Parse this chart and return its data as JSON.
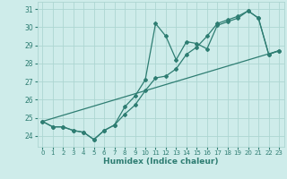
{
  "xlabel": "Humidex (Indice chaleur)",
  "bg_color": "#ceecea",
  "line_color": "#2e7d72",
  "grid_color": "#add6d2",
  "xlim": [
    -0.5,
    23.5
  ],
  "ylim": [
    23.4,
    31.4
  ],
  "yticks": [
    24,
    25,
    26,
    27,
    28,
    29,
    30,
    31
  ],
  "xticks": [
    0,
    1,
    2,
    3,
    4,
    5,
    6,
    7,
    8,
    9,
    10,
    11,
    12,
    13,
    14,
    15,
    16,
    17,
    18,
    19,
    20,
    21,
    22,
    23
  ],
  "line1_x": [
    0,
    1,
    2,
    3,
    4,
    5,
    6,
    7,
    8,
    9,
    10,
    11,
    12,
    13,
    14,
    15,
    16,
    17,
    18,
    19,
    20,
    21,
    22,
    23
  ],
  "line1_y": [
    24.8,
    24.5,
    24.5,
    24.3,
    24.2,
    23.8,
    24.3,
    24.6,
    25.6,
    26.2,
    27.1,
    30.2,
    29.5,
    28.2,
    29.2,
    29.1,
    28.8,
    30.1,
    30.3,
    30.5,
    30.9,
    30.5,
    28.5,
    28.7
  ],
  "line2_x": [
    0,
    1,
    2,
    3,
    4,
    5,
    6,
    7,
    8,
    9,
    10,
    11,
    12,
    13,
    14,
    15,
    16,
    17,
    18,
    19,
    20,
    21,
    22,
    23
  ],
  "line2_y": [
    24.8,
    24.5,
    24.5,
    24.3,
    24.2,
    23.8,
    24.3,
    24.6,
    25.2,
    25.7,
    26.5,
    27.2,
    27.3,
    27.7,
    28.5,
    28.9,
    29.5,
    30.2,
    30.4,
    30.6,
    30.9,
    30.5,
    28.5,
    28.7
  ],
  "line3_x": [
    0,
    23
  ],
  "line3_y": [
    24.8,
    28.7
  ]
}
